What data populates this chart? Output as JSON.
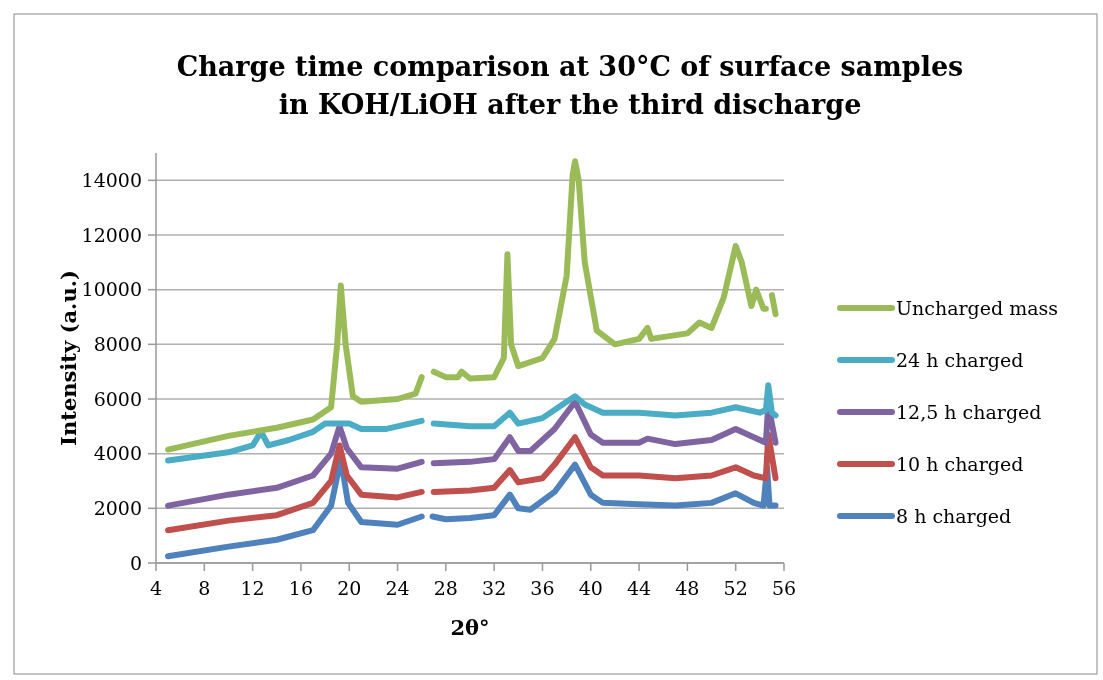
{
  "chart_data": {
    "type": "line",
    "title": "Charge time comparison at 30°C of surface samples in KOH/LiOH after the third discharge",
    "xlabel": "2θ°",
    "ylabel": "Intensity (a.u.)",
    "xlim": [
      4,
      56
    ],
    "xticks": [
      4,
      8,
      12,
      16,
      20,
      24,
      28,
      32,
      36,
      40,
      44,
      48,
      52,
      56
    ],
    "ylim": [
      0,
      15000
    ],
    "yticks": [
      0,
      2000,
      4000,
      6000,
      8000,
      10000,
      12000,
      14000
    ],
    "grid": "y",
    "legend": "right",
    "marker": "none",
    "line_style": "solid",
    "series": [
      {
        "name": "Uncharged mass",
        "color": "#9bbb59",
        "x": [
          5,
          10,
          14,
          17,
          18.5,
          19,
          19.3,
          19.7,
          20.3,
          21,
          24,
          25.5,
          26,
          26.5,
          27,
          28,
          29,
          29.3,
          30,
          32,
          32.8,
          33.1,
          33.4,
          34,
          36,
          37,
          38,
          38.5,
          38.7,
          39,
          39.5,
          40.5,
          42,
          44,
          44.7,
          45,
          48,
          49,
          50,
          51,
          52,
          52.5,
          53.3,
          53.7,
          54.3,
          54.5,
          54.7,
          55,
          55.3
        ],
        "values": [
          4150,
          4650,
          4950,
          5250,
          5700,
          8000,
          10150,
          8000,
          6100,
          5900,
          6000,
          6200,
          6800,
          null,
          7000,
          6800,
          6800,
          7000,
          6750,
          6800,
          7500,
          11300,
          8000,
          7200,
          7500,
          8200,
          10500,
          14200,
          14700,
          14000,
          11000,
          8500,
          8000,
          8200,
          8600,
          8200,
          8400,
          8800,
          8600,
          9700,
          11600,
          11000,
          9400,
          10000,
          9300,
          9300,
          null,
          9800,
          9100
        ]
      },
      {
        "name": "24 h charged",
        "color": "#4bacc6",
        "x": [
          5,
          10,
          12,
          12.7,
          13.3,
          15,
          17,
          18,
          19,
          20,
          21,
          23,
          25,
          26,
          26.5,
          27,
          30,
          32,
          33.3,
          34,
          36,
          38,
          38.7,
          39.5,
          41,
          44,
          47,
          50,
          52,
          54,
          54.5,
          54.7,
          55,
          55.3
        ],
        "values": [
          3750,
          4050,
          4300,
          4800,
          4300,
          4500,
          4800,
          5100,
          5100,
          5100,
          4900,
          4900,
          5100,
          5200,
          null,
          5100,
          5000,
          5000,
          5500,
          5100,
          5300,
          5900,
          6100,
          5800,
          5500,
          5500,
          5400,
          5500,
          5700,
          5500,
          5600,
          6500,
          5500,
          5400
        ]
      },
      {
        "name": "12,5 h charged",
        "color": "#8064a2",
        "x": [
          5,
          10,
          14,
          17,
          18.5,
          19.2,
          19.8,
          21,
          24,
          26,
          26.5,
          27,
          30,
          32,
          33.3,
          34,
          35,
          37,
          38.7,
          40,
          41,
          44,
          44.7,
          47,
          50,
          52,
          53.5,
          54.5,
          54.7,
          55.3
        ],
        "values": [
          2100,
          2500,
          2750,
          3200,
          4000,
          5000,
          4200,
          3500,
          3450,
          3700,
          null,
          3650,
          3700,
          3800,
          4600,
          4100,
          4100,
          4900,
          5900,
          4700,
          4400,
          4400,
          4550,
          4350,
          4500,
          4900,
          4600,
          4400,
          5800,
          4400
        ]
      },
      {
        "name": "10 h charged",
        "color": "#c0504d",
        "x": [
          5,
          10,
          14,
          17,
          18.5,
          19.2,
          19.8,
          21,
          24,
          26,
          26.5,
          27,
          30,
          32,
          33.3,
          34,
          36,
          37,
          38.7,
          40,
          41,
          44,
          47,
          50,
          52,
          53.5,
          54.5,
          54.7,
          55.3
        ],
        "values": [
          1200,
          1550,
          1750,
          2200,
          3000,
          4300,
          3200,
          2500,
          2400,
          2600,
          null,
          2600,
          2650,
          2750,
          3400,
          2950,
          3100,
          3600,
          4600,
          3500,
          3200,
          3200,
          3100,
          3200,
          3500,
          3200,
          3100,
          4700,
          3100
        ]
      },
      {
        "name": "8 h charged",
        "color": "#4f81bd",
        "x": [
          5,
          10,
          14,
          17,
          18.5,
          19.3,
          19.9,
          21,
          24,
          26,
          26.5,
          26.9,
          28,
          30,
          32,
          33.3,
          34,
          35,
          37,
          38.7,
          40,
          41,
          44,
          47,
          50,
          52,
          53.5,
          54.3,
          54.6,
          54.8,
          55.3
        ],
        "values": [
          250,
          600,
          850,
          1200,
          2100,
          3800,
          2200,
          1500,
          1400,
          1700,
          null,
          1700,
          1600,
          1650,
          1750,
          2500,
          2000,
          1950,
          2600,
          3600,
          2500,
          2200,
          2150,
          2100,
          2200,
          2550,
          2200,
          2100,
          3500,
          2100,
          2100
        ]
      }
    ]
  }
}
